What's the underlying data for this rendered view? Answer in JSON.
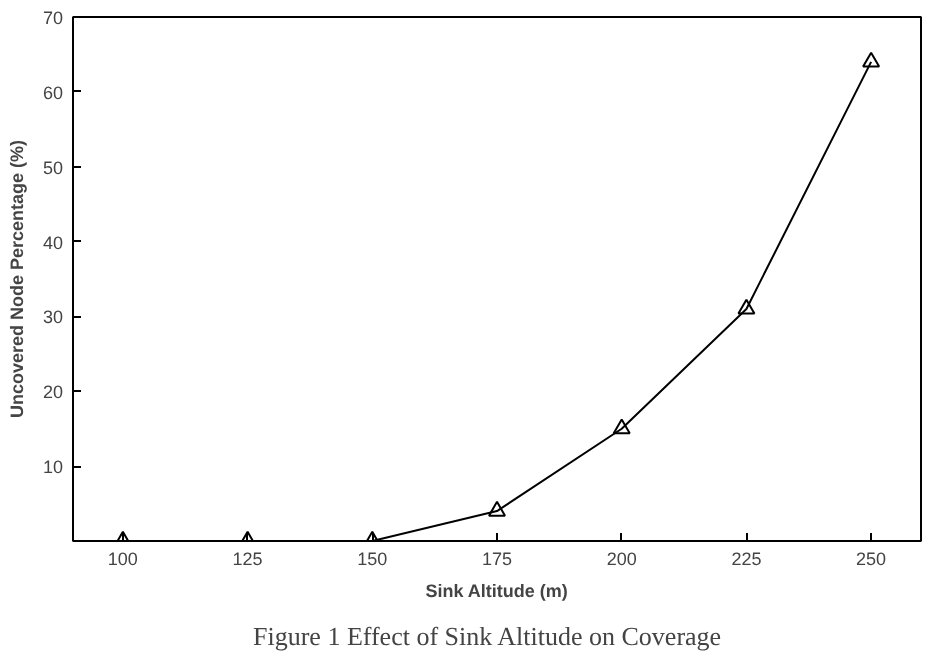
{
  "chart_data": {
    "type": "line",
    "xlabel": "Sink Altitude (m)",
    "ylabel": "Uncovered Node Percentage (%)",
    "x": [
      100,
      125,
      150,
      175,
      200,
      225,
      250
    ],
    "series": [
      {
        "color": "#000000",
        "values": [
          0,
          0,
          0,
          4,
          15,
          31,
          64
        ]
      }
    ],
    "xlim": [
      90,
      260
    ],
    "ylim": [
      0,
      70
    ],
    "xticks": [
      100,
      125,
      150,
      175,
      200,
      225,
      250
    ],
    "yticks": [
      10,
      20,
      30,
      40,
      50,
      60,
      70
    ],
    "marker": "triangle",
    "line_style": "solid",
    "grid": false,
    "annotations": [
      "Figure 1 Effect of Sink Altitude on Coverage"
    ]
  }
}
